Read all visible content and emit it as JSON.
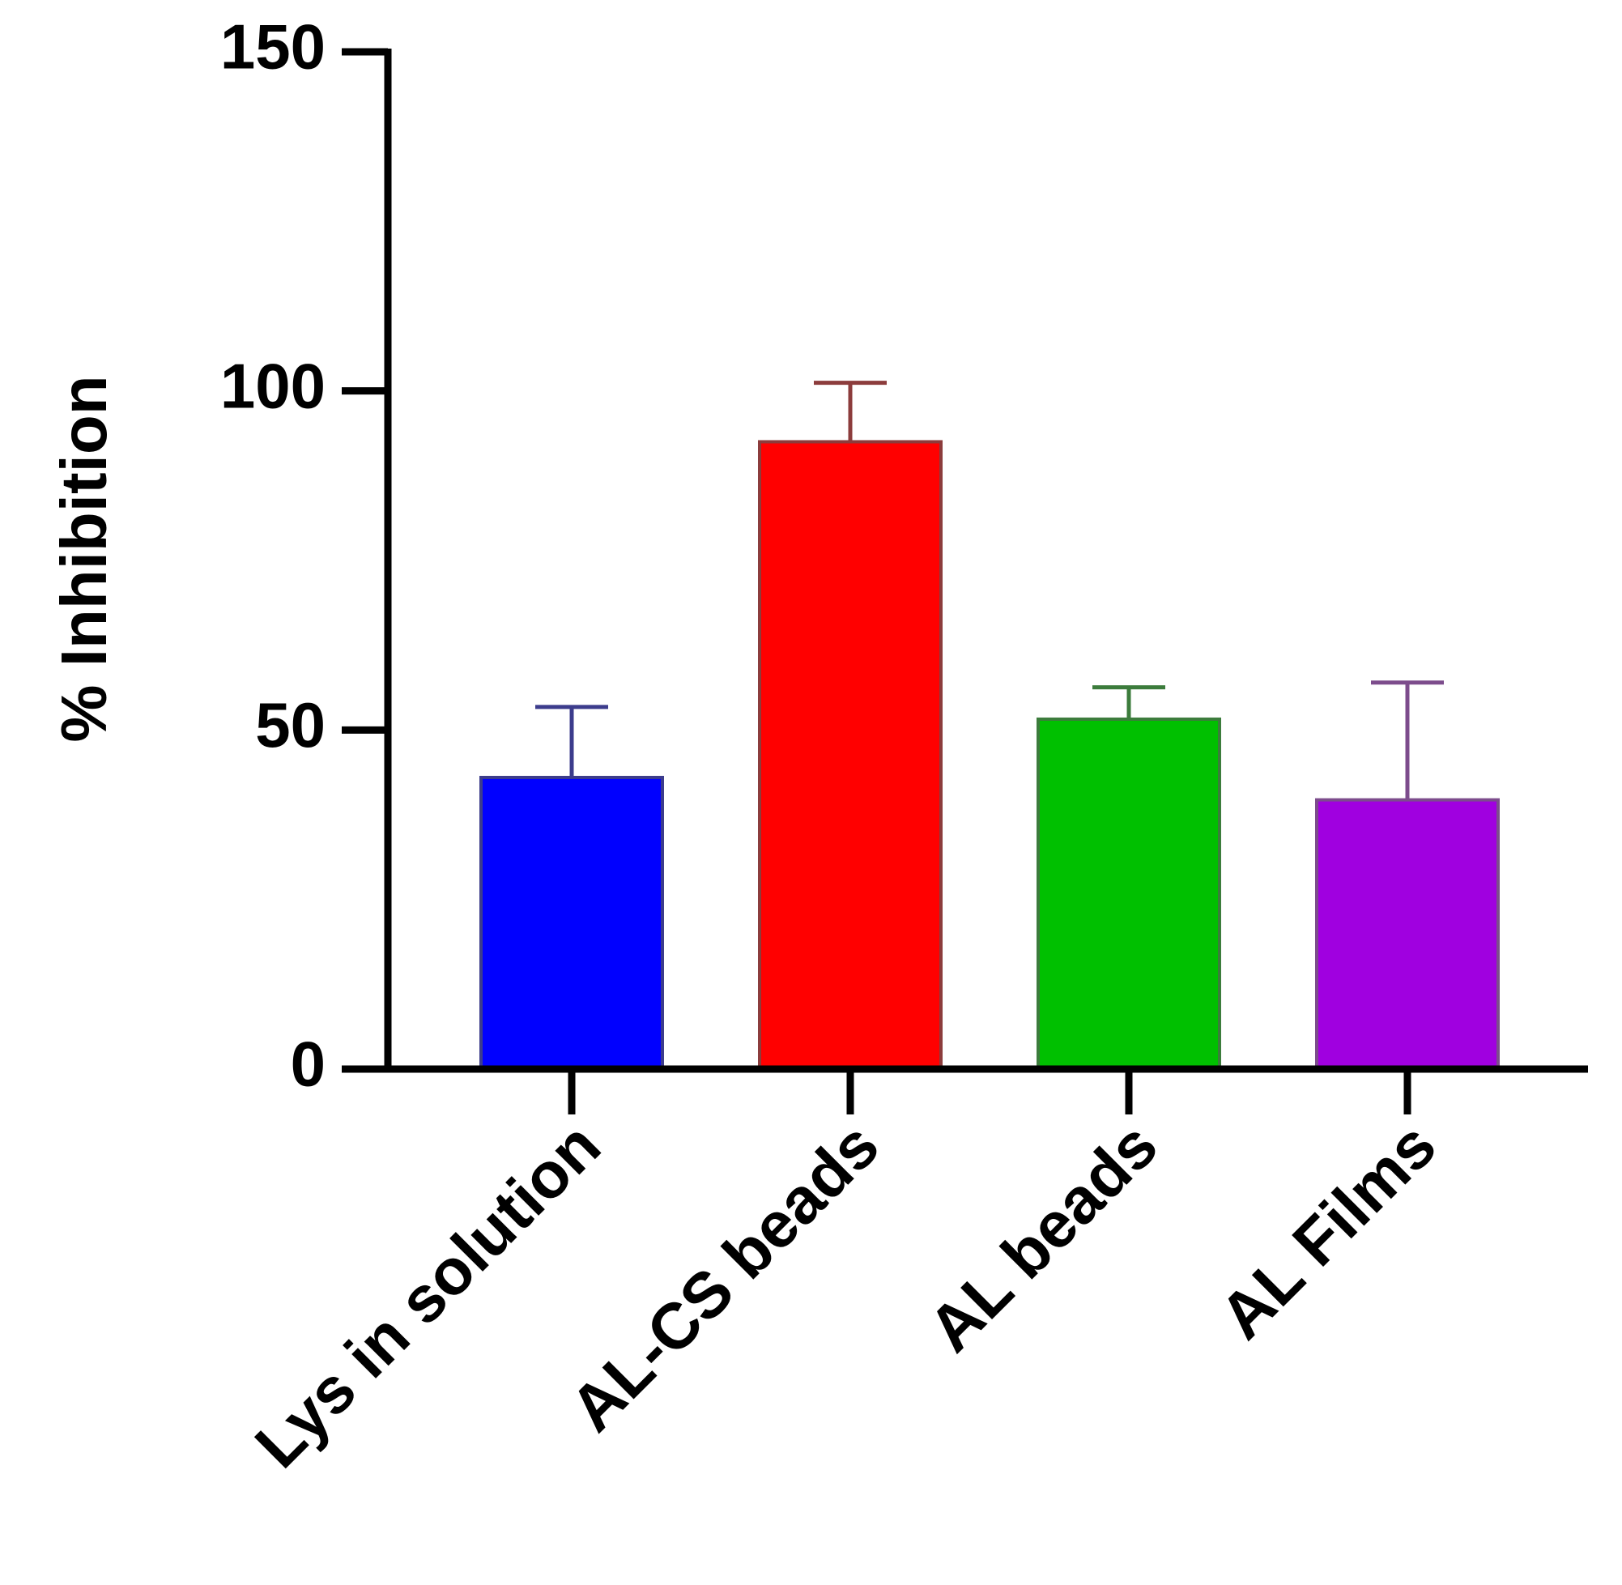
{
  "chart_data": {
    "type": "bar",
    "y_label": "% Inhibition",
    "categories": [
      "Lys in solution",
      "AL-CS beads",
      "AL beads",
      "AL Films"
    ],
    "values": [
      43,
      92.5,
      51.6,
      39.7
    ],
    "errors": [
      10.4,
      8.7,
      4.7,
      17.3
    ],
    "colors": [
      "#0000ff",
      "#ff0000",
      "#00c000",
      "#a000e0"
    ],
    "error_colors": [
      "#3c3c8c",
      "#8c3c3c",
      "#3c7c3c",
      "#7c4c8c"
    ],
    "ylim": [
      0,
      150
    ],
    "yticks": [
      0,
      50,
      100,
      150
    ]
  }
}
